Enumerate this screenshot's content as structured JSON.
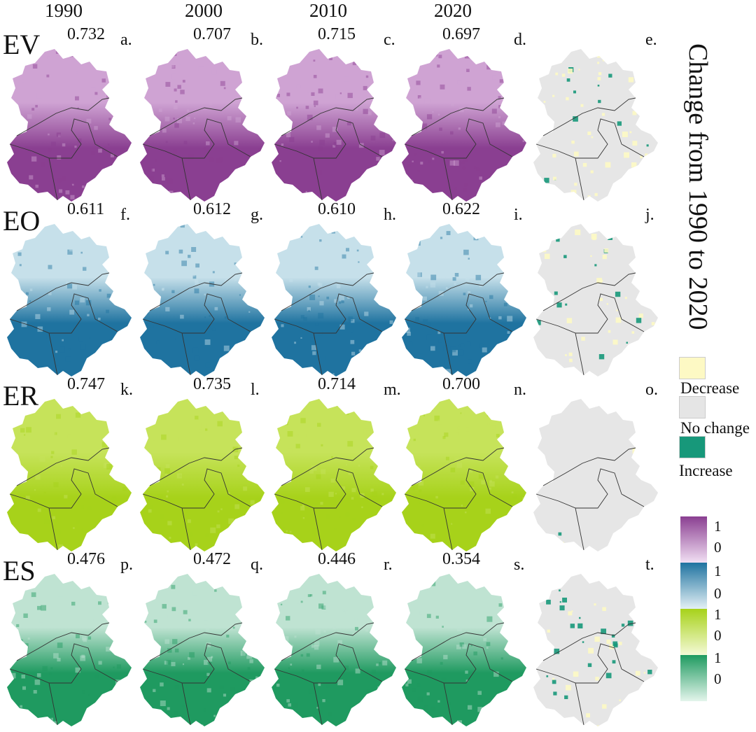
{
  "years": [
    "1990",
    "2000",
    "2010",
    "2020"
  ],
  "change_title": "Change from 1990 to 2020",
  "rows": [
    {
      "label": "EV",
      "values": [
        "0.732",
        "0.707",
        "0.715",
        "0.697"
      ],
      "panels": [
        "a.",
        "b.",
        "c.",
        "d.",
        "e."
      ],
      "colors": {
        "light": "#cfa3d3",
        "dark": "#8a3f91"
      }
    },
    {
      "label": "EO",
      "values": [
        "0.611",
        "0.612",
        "0.610",
        "0.622"
      ],
      "panels": [
        "f.",
        "g.",
        "h.",
        "i.",
        "j."
      ],
      "colors": {
        "light": "#c6e0ea",
        "dark": "#1f73a0"
      }
    },
    {
      "label": "ER",
      "values": [
        "0.747",
        "0.735",
        "0.714",
        "0.700"
      ],
      "panels": [
        "k.",
        "l.",
        "m.",
        "n.",
        "o."
      ],
      "colors": {
        "light": "#c6e35a",
        "dark": "#a7d21a"
      }
    },
    {
      "label": "ES",
      "values": [
        "0.476",
        "0.472",
        "0.446",
        "0.354"
      ],
      "panels": [
        "p.",
        "q.",
        "r.",
        "s.",
        "t."
      ],
      "colors": {
        "light": "#bfe3d2",
        "dark": "#1f9a60"
      }
    }
  ],
  "change_legend": [
    {
      "label": "Decrease",
      "color": "#fdf9c4"
    },
    {
      "label": "No change",
      "color": "#e5e5e5"
    },
    {
      "label": "Increase",
      "color": "#17987a"
    }
  ],
  "ramps": [
    {
      "high": "1",
      "low": "0",
      "top": "#8a3f91",
      "bottom": "#f1dff3"
    },
    {
      "high": "1",
      "low": "0",
      "top": "#1f73a0",
      "bottom": "#e3f0f5"
    },
    {
      "high": "1",
      "low": "0",
      "top": "#a7d21a",
      "bottom": "#f4f9d6"
    },
    {
      "high": "1",
      "low": "0",
      "top": "#1f9a60",
      "bottom": "#e4f5ec"
    }
  ]
}
